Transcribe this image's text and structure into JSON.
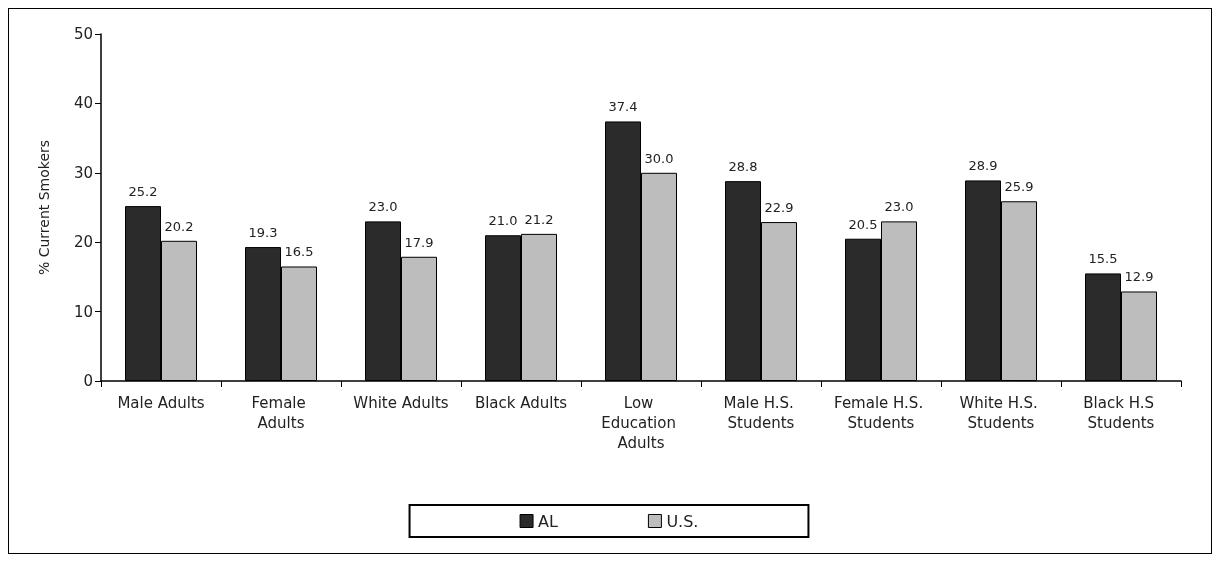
{
  "chart_data": {
    "type": "bar",
    "ylabel": "% Current Smokers",
    "categories": [
      "Male Adults",
      "Female Adults",
      "White Adults",
      "Black Adults",
      "Low Education Adults",
      "Male H.S. Students",
      "Female H.S. Students",
      "White H.S. Students",
      "Black H.S Students"
    ],
    "series": [
      {
        "name": "AL",
        "color": "#2b2b2b",
        "values": [
          25.2,
          19.3,
          23.0,
          21.0,
          37.4,
          28.8,
          20.5,
          28.9,
          15.5
        ],
        "value_labels": [
          "25.2",
          "19.3",
          "23.0",
          "21.0",
          "37.4",
          "28.8",
          "20.5",
          "28.9",
          "15.5"
        ]
      },
      {
        "name": "U.S.",
        "color": "#bdbdbd",
        "values": [
          20.2,
          16.5,
          17.9,
          21.2,
          30.0,
          22.9,
          23.0,
          25.9,
          12.9
        ],
        "value_labels": [
          "20.2",
          "16.5",
          "17.9",
          "21.2",
          "30.0",
          "22.9",
          "23.0",
          "25.9",
          "12.9"
        ]
      }
    ],
    "ylim": [
      0,
      50
    ],
    "yticks": [
      0,
      10,
      20,
      30,
      40,
      50
    ],
    "grid": false,
    "legend": "bottom"
  }
}
